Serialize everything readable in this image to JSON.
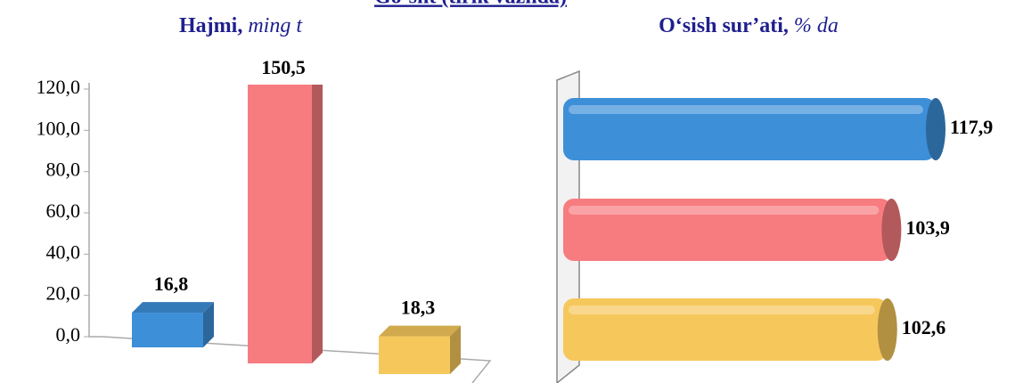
{
  "heading": "Go‘sht (tirik vaznda)",
  "chart_data": [
    {
      "type": "bar",
      "title": "Hajmi,",
      "title_unit": "ming t",
      "categories": [
        null,
        null,
        null
      ],
      "values": [
        16.8,
        150.5,
        18.3
      ],
      "value_labels": [
        "16,8",
        "150,5",
        "18,3"
      ],
      "colors": [
        "#3d8fd8",
        "#f77c80",
        "#f6c85c"
      ],
      "ylim": [
        0,
        120
      ],
      "yticks": [
        {
          "value": 0,
          "label": "0,0"
        },
        {
          "value": 20,
          "label": "20,0"
        },
        {
          "value": 40,
          "label": "40,0"
        },
        {
          "value": 60,
          "label": "60,0"
        },
        {
          "value": 80,
          "label": "80,0"
        },
        {
          "value": 100,
          "label": "100,0"
        },
        {
          "value": 120,
          "label": "120,0"
        }
      ]
    },
    {
      "type": "hbar",
      "title": "O‘sish sur’ati,",
      "title_unit": "% da",
      "categories": [
        null,
        null,
        null
      ],
      "values": [
        117.9,
        103.9,
        102.6
      ],
      "value_labels": [
        "117,9",
        "103,9",
        "102,6"
      ],
      "colors": [
        "#3d8fd8",
        "#f77c80",
        "#f6c85c"
      ]
    }
  ]
}
